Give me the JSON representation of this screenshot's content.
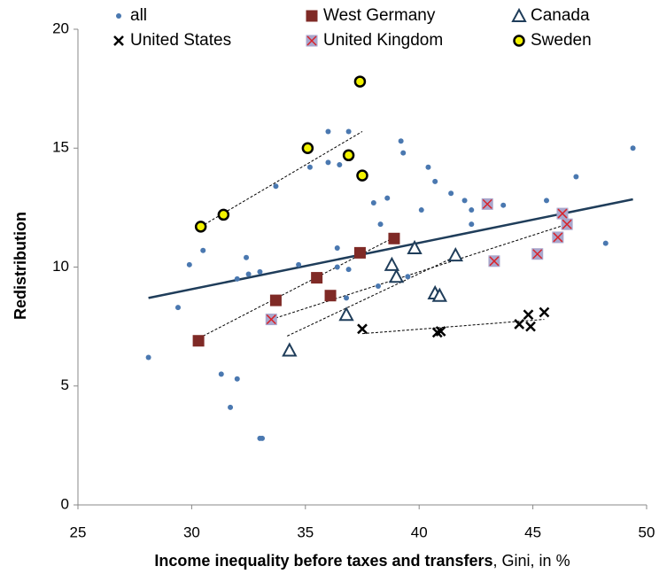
{
  "chart_data": {
    "type": "scatter",
    "x_label": [
      "Income inequality before taxes and transfers",
      ", Gini, in %"
    ],
    "y_label": "Redistribution",
    "xlim": [
      25,
      50
    ],
    "xticks": [
      25,
      30,
      35,
      40,
      45,
      50
    ],
    "ylim": [
      0,
      20
    ],
    "yticks": [
      0,
      5,
      10,
      15,
      20
    ],
    "grid": false,
    "trend": {
      "color": "#1f3d5a",
      "x": [
        28.1,
        49.4
      ],
      "y": [
        8.7,
        12.85
      ]
    },
    "series": [
      {
        "name": "all",
        "marker": "dot",
        "color": "#4a78b0",
        "x": [
          28.1,
          29.4,
          29.9,
          30.5,
          31.3,
          31.7,
          32.0,
          32.0,
          32.4,
          32.5,
          33.0,
          33.0,
          33.1,
          33.7,
          34.7,
          35.2,
          36.0,
          36.0,
          36.5,
          36.4,
          36.4,
          36.8,
          36.9,
          36.9,
          38.3,
          38.0,
          38.6,
          38.2,
          39.2,
          39.3,
          39.5,
          40.1,
          40.4,
          40.7,
          41.4,
          42.0,
          42.3,
          42.3,
          43.7,
          45.6,
          46.9,
          48.2,
          49.4
        ],
        "y": [
          6.2,
          8.3,
          10.1,
          10.7,
          5.5,
          4.1,
          5.3,
          9.5,
          10.4,
          9.7,
          9.8,
          2.8,
          2.8,
          13.4,
          10.1,
          14.2,
          15.7,
          14.4,
          14.3,
          10.8,
          10.0,
          8.7,
          9.9,
          15.7,
          11.8,
          12.7,
          12.9,
          9.2,
          15.3,
          14.8,
          9.6,
          12.4,
          14.2,
          13.6,
          13.1,
          12.8,
          12.4,
          11.8,
          12.6,
          12.8,
          13.8,
          11.0,
          15.0
        ]
      },
      {
        "name": "West Germany",
        "marker": "square",
        "color": "#7f2a26",
        "x": [
          30.3,
          33.7,
          35.5,
          36.1,
          37.4,
          38.9
        ],
        "y": [
          6.9,
          8.6,
          9.55,
          8.8,
          10.6,
          11.2
        ],
        "fit": {
          "x": [
            30.5,
            38.8
          ],
          "y": [
            7.1,
            11.2
          ]
        }
      },
      {
        "name": "Canada",
        "marker": "triangle",
        "color": "#1f3d5a",
        "x": [
          34.3,
          36.8,
          38.8,
          39.0,
          39.8,
          40.7,
          40.9,
          41.6
        ],
        "y": [
          6.5,
          8.0,
          10.1,
          9.6,
          10.8,
          8.9,
          8.8,
          10.5
        ],
        "fit": {
          "x": [
            34.2,
            41.5
          ],
          "y": [
            7.1,
            10.4
          ]
        }
      },
      {
        "name": "United States",
        "marker": "cross",
        "color": "#000000",
        "x": [
          37.5,
          40.8,
          40.95,
          44.4,
          44.8,
          44.9,
          45.5
        ],
        "y": [
          7.4,
          7.25,
          7.3,
          7.6,
          8.0,
          7.5,
          8.1
        ],
        "fit": {
          "x": [
            37.5,
            45.5
          ],
          "y": [
            7.2,
            7.8
          ]
        }
      },
      {
        "name": "United Kingdom",
        "marker": "square-cross",
        "color": "#a9a6cc",
        "x": [
          33.5,
          43.0,
          43.3,
          45.2,
          46.1,
          46.3,
          46.5
        ],
        "y": [
          7.8,
          12.65,
          10.25,
          10.55,
          11.25,
          12.25,
          11.8
        ],
        "fit": {
          "x": [
            33.5,
            46.5
          ],
          "y": [
            7.8,
            11.8
          ]
        }
      },
      {
        "name": "Sweden",
        "marker": "ring",
        "color": "#f2f200",
        "x": [
          30.4,
          31.4,
          35.1,
          36.9,
          37.4,
          37.5
        ],
        "y": [
          11.7,
          12.2,
          15.0,
          14.7,
          17.8,
          13.85
        ],
        "fit": {
          "x": [
            30.4,
            37.5
          ],
          "y": [
            11.7,
            15.7
          ]
        }
      }
    ]
  }
}
